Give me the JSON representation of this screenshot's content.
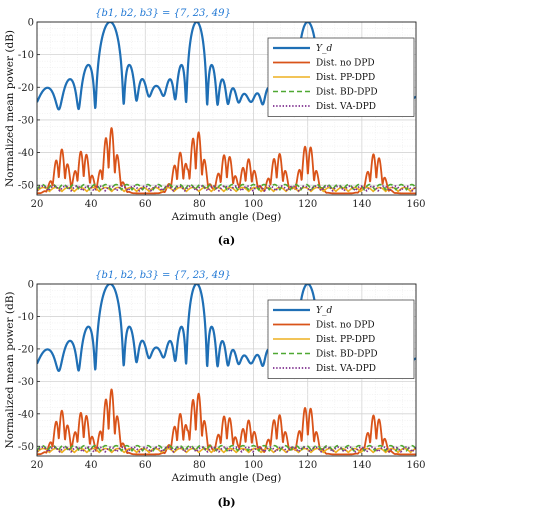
{
  "colors": {
    "Yd": "#1f6fb5",
    "no_dpd": "#d95319",
    "pp_dpd": "#edb120",
    "bd_dpd": "#4fa832",
    "va_dpd": "#7e2f8e"
  },
  "chart_data": [
    {
      "type": "line",
      "caption": "(a)",
      "annotation": "{b1, b2, b3} = {7, 23, 49}",
      "xlabel": "Azimuth angle (Deg)",
      "ylabel": "Normalized mean power (dB)",
      "xlim": [
        20,
        160
      ],
      "ylim": [
        -53,
        0
      ],
      "xticks": [
        20,
        40,
        60,
        80,
        100,
        120,
        140,
        160
      ],
      "yticks": [
        0,
        -10,
        -20,
        -30,
        -40,
        -50
      ],
      "grid": true,
      "legend_position": "top-right",
      "beam_peaks_deg": [
        47,
        79,
        120
      ],
      "series": [
        {
          "name": "Y_d",
          "key": "Yd",
          "style": "solid",
          "width": 2.2
        },
        {
          "name": "Dist. no DPD",
          "key": "no_dpd",
          "style": "solid",
          "width": 1.8
        },
        {
          "name": "Dist. PP-DPD",
          "key": "pp_dpd",
          "style": "solid",
          "width": 1.6
        },
        {
          "name": "Dist. BD-DPD",
          "key": "bd_dpd",
          "style": "dashed",
          "width": 1.6
        },
        {
          "name": "Dist. VA-DPD",
          "key": "va_dpd",
          "style": "dotted",
          "width": 1.8
        }
      ],
      "no_dpd_peaks": [
        [
          29,
          -39
        ],
        [
          37,
          -39
        ],
        [
          47,
          -32
        ],
        [
          73,
          -40
        ],
        [
          79,
          -33
        ],
        [
          90,
          -40
        ],
        [
          98,
          -42
        ],
        [
          109,
          -40
        ],
        [
          120,
          -37
        ],
        [
          145,
          -40
        ]
      ]
    },
    {
      "type": "line",
      "caption": "(b)",
      "annotation": "{b1, b2, b3} = {7, 23, 49}",
      "xlabel": "Azimuth angle (Deg)",
      "ylabel": "Normalized mean power (dB)",
      "xlim": [
        20,
        160
      ],
      "ylim": [
        -53,
        0
      ],
      "xticks": [
        20,
        40,
        60,
        80,
        100,
        120,
        140,
        160
      ],
      "yticks": [
        0,
        -10,
        -20,
        -30,
        -40,
        -50
      ],
      "grid": true,
      "legend_position": "top-right",
      "beam_peaks_deg": [
        47,
        79,
        120
      ],
      "series": [
        {
          "name": "Y_d",
          "key": "Yd",
          "style": "solid",
          "width": 2.2
        },
        {
          "name": "Dist. no DPD",
          "key": "no_dpd",
          "style": "solid",
          "width": 1.8
        },
        {
          "name": "Dist. PP-DPD",
          "key": "pp_dpd",
          "style": "solid",
          "width": 1.6
        },
        {
          "name": "Dist. BD-DPD",
          "key": "bd_dpd",
          "style": "dashed",
          "width": 1.6
        },
        {
          "name": "Dist. VA-DPD",
          "key": "va_dpd",
          "style": "dotted",
          "width": 1.8
        }
      ],
      "no_dpd_peaks": [
        [
          29,
          -39
        ],
        [
          37,
          -39
        ],
        [
          47,
          -32
        ],
        [
          73,
          -40
        ],
        [
          79,
          -33
        ],
        [
          90,
          -40
        ],
        [
          98,
          -42
        ],
        [
          109,
          -40
        ],
        [
          120,
          -37
        ],
        [
          145,
          -40
        ]
      ]
    }
  ]
}
